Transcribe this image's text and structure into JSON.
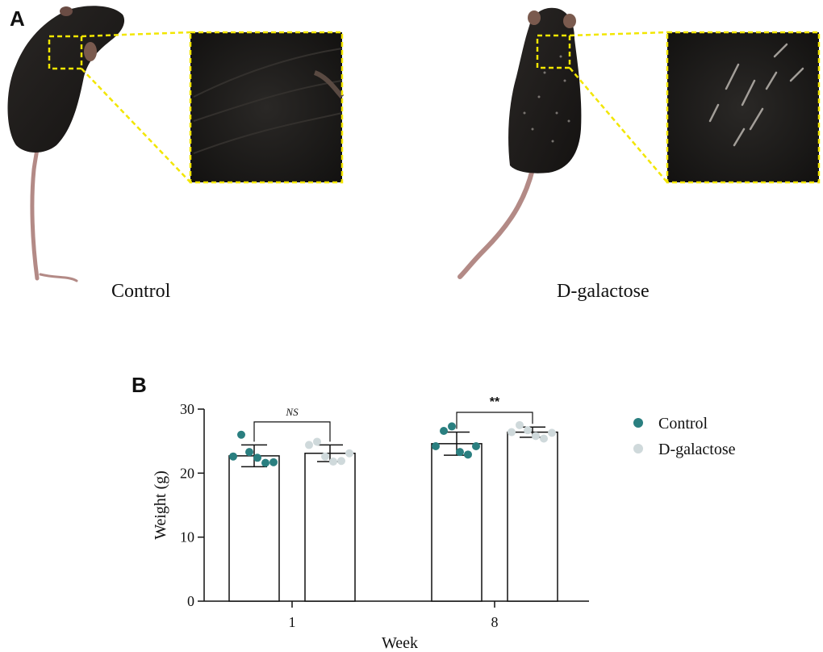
{
  "figure": {
    "panel_a_label": "A",
    "panel_b_label": "B",
    "caption_left": "Control",
    "caption_right": "D-galactose"
  },
  "colors": {
    "control": "#2a7f80",
    "dgal": "#cfd9db",
    "highlight": "#f2e600",
    "mouse_fur": "#1c1a19",
    "tail": "#b38a86"
  },
  "chart_data": {
    "type": "bar",
    "categories": [
      "1",
      "8"
    ],
    "xlabel": "Week",
    "ylabel": "Weight (g)",
    "ylim": [
      0,
      30
    ],
    "yticks": [
      0,
      10,
      20,
      30
    ],
    "legend_position": "right",
    "series": [
      {
        "name": "Control",
        "values": [
          22.7,
          24.6
        ],
        "errors": [
          1.7,
          1.8
        ],
        "points": [
          [
            22.6,
            26.0,
            23.3,
            22.4,
            21.6,
            21.7
          ],
          [
            24.2,
            26.6,
            27.3,
            23.3,
            22.9,
            24.2
          ]
        ]
      },
      {
        "name": "D-galactose",
        "values": [
          23.1,
          26.4
        ],
        "errors": [
          1.3,
          0.8
        ],
        "points": [
          [
            24.4,
            24.9,
            22.6,
            21.8,
            21.9,
            23.1
          ],
          [
            26.4,
            27.5,
            26.7,
            25.8,
            25.4,
            26.3
          ]
        ]
      }
    ],
    "annotations": [
      {
        "category": "1",
        "text": "NS",
        "style": "italic"
      },
      {
        "category": "8",
        "text": "**",
        "style": "bold"
      }
    ]
  }
}
